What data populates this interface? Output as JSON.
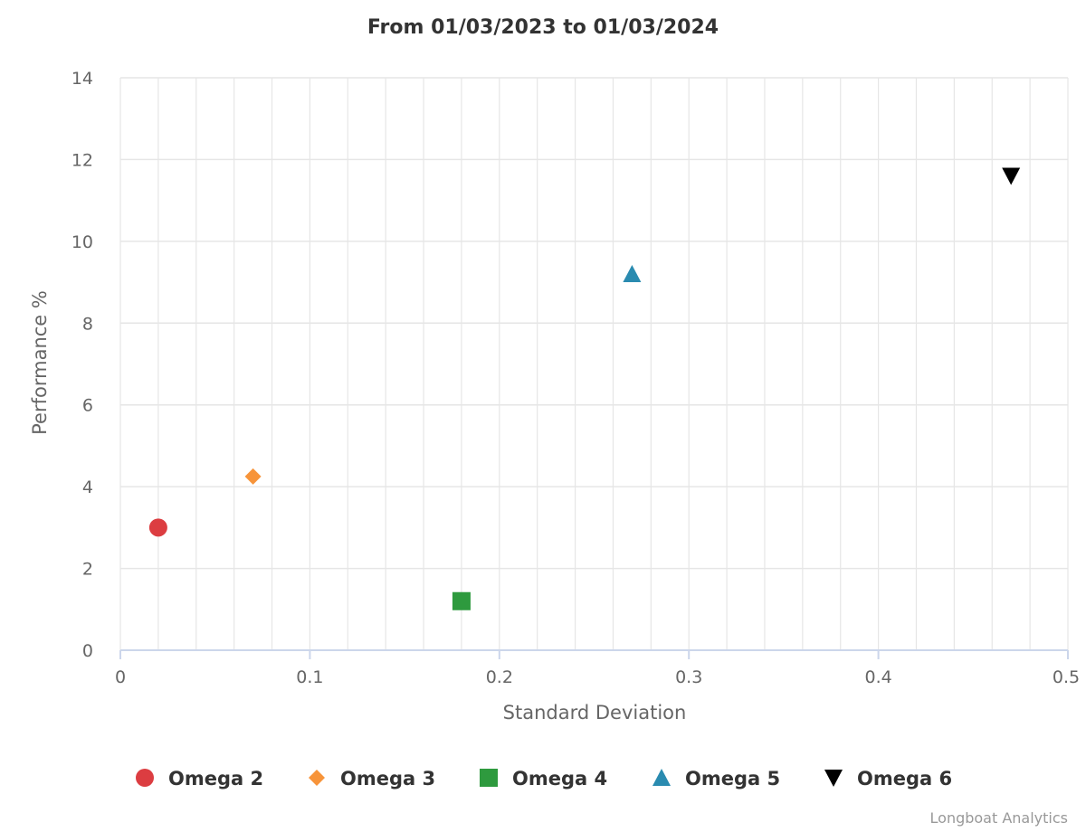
{
  "chart_data": {
    "type": "scatter",
    "title": "From 01/03/2023 to 01/03/2024",
    "xlabel": "Standard Deviation",
    "ylabel": "Performance %",
    "xlim": [
      0,
      0.5
    ],
    "ylim": [
      0,
      14
    ],
    "x_ticks": [
      "0",
      "0.1",
      "0.2",
      "0.3",
      "0.4",
      "0.5"
    ],
    "y_ticks": [
      "0",
      "2",
      "4",
      "6",
      "8",
      "10",
      "12",
      "14"
    ],
    "x_minor_grid_step": 0.02,
    "grid": true,
    "legend_position": "bottom-center",
    "series": [
      {
        "name": "Omega 2",
        "x": 0.02,
        "y": 3.0,
        "marker": "circle",
        "color": "#dc3d41"
      },
      {
        "name": "Omega 3",
        "x": 0.07,
        "y": 4.25,
        "marker": "diamond",
        "color": "#f7943a"
      },
      {
        "name": "Omega 4",
        "x": 0.18,
        "y": 1.2,
        "marker": "square",
        "color": "#2e9a3e"
      },
      {
        "name": "Omega 5",
        "x": 0.27,
        "y": 9.2,
        "marker": "triangle-up",
        "color": "#2a8bb0"
      },
      {
        "name": "Omega 6",
        "x": 0.47,
        "y": 11.6,
        "marker": "triangle-down",
        "color": "#000000"
      }
    ]
  },
  "credit": "Longboat Analytics"
}
